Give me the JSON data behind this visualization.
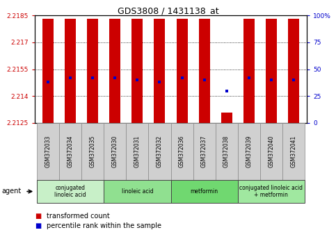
{
  "title": "GDS3808 / 1431138_at",
  "samples": [
    "GSM372033",
    "GSM372034",
    "GSM372035",
    "GSM372030",
    "GSM372031",
    "GSM372032",
    "GSM372036",
    "GSM372037",
    "GSM372038",
    "GSM372039",
    "GSM372040",
    "GSM372041"
  ],
  "bar_top": [
    2.2183,
    2.2183,
    2.2183,
    2.2183,
    2.2183,
    2.2183,
    2.2183,
    2.2183,
    2.2131,
    2.2183,
    2.2183,
    2.2183
  ],
  "bar_bottom": 2.2125,
  "blue_y": [
    2.2148,
    2.215,
    2.215,
    2.215,
    2.2149,
    2.2148,
    2.215,
    2.2149,
    2.2143,
    2.215,
    2.2149,
    2.2149
  ],
  "ylim_left": [
    2.2125,
    2.2185
  ],
  "yticks_left": [
    2.2125,
    2.214,
    2.2155,
    2.217,
    2.2185
  ],
  "ytick_labels_left": [
    "2.2125",
    "2.214",
    "2.2155",
    "2.217",
    "2.2185"
  ],
  "ylim_right": [
    0,
    100
  ],
  "yticks_right": [
    0,
    25,
    50,
    75,
    100
  ],
  "ytick_labels_right": [
    "0",
    "25",
    "50",
    "75",
    "100%"
  ],
  "bar_color": "#cc0000",
  "blue_color": "#0000cc",
  "left_tick_color": "#cc0000",
  "right_tick_color": "#0000cc",
  "groups": [
    {
      "label": "conjugated\nlinoleic acid",
      "start": 0,
      "end": 3,
      "color": "#c8f0c8"
    },
    {
      "label": "linoleic acid",
      "start": 3,
      "end": 6,
      "color": "#90e090"
    },
    {
      "label": "metformin",
      "start": 6,
      "end": 9,
      "color": "#70d870"
    },
    {
      "label": "conjugated linoleic acid\n+ metformin",
      "start": 9,
      "end": 12,
      "color": "#a0e8a0"
    }
  ],
  "agent_label": "agent",
  "legend_items": [
    {
      "color": "#cc0000",
      "label": "transformed count"
    },
    {
      "color": "#0000cc",
      "label": "percentile rank within the sample"
    }
  ],
  "grid_yticks": [
    2.214,
    2.2155,
    2.217
  ],
  "bar_width": 0.5,
  "bg_color": "#ffffff",
  "plot_bg_color": "#ffffff",
  "cell_bg_color": "#d0d0d0"
}
